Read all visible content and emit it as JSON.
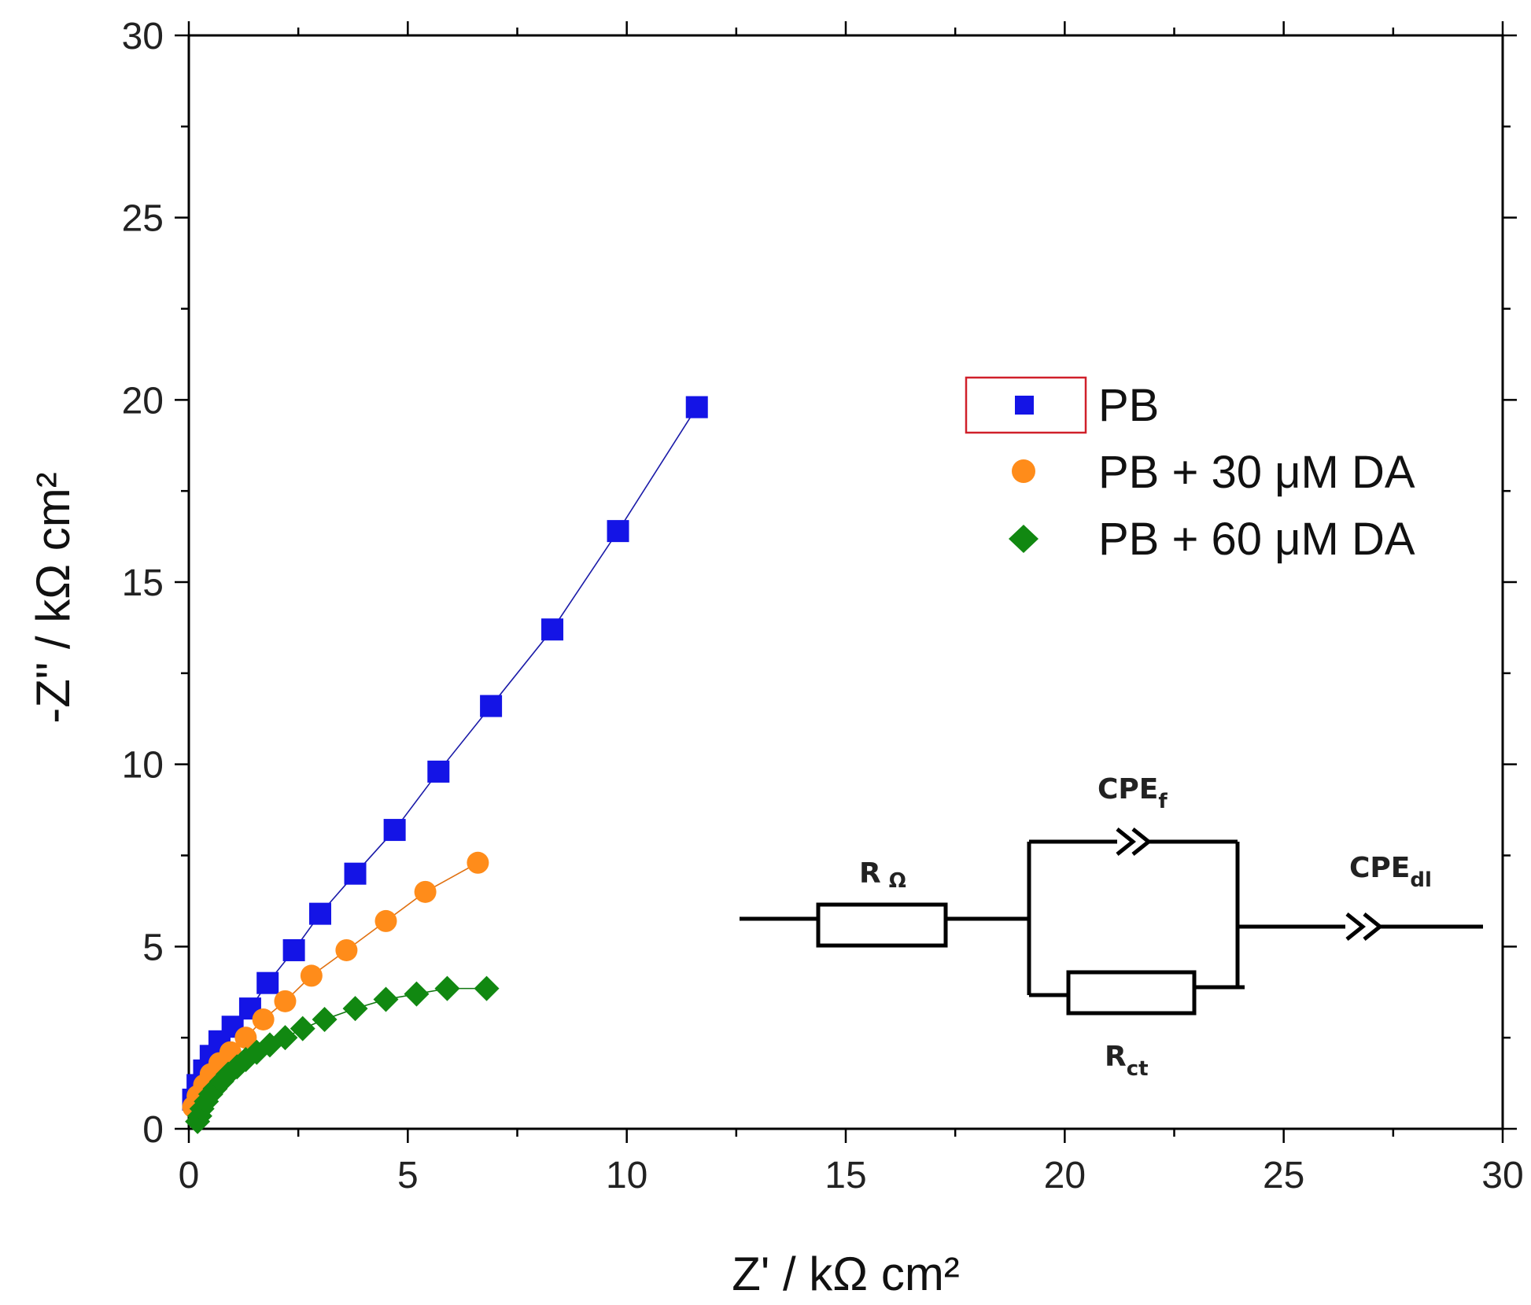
{
  "chart_data": {
    "type": "scatter",
    "xlabel": "Z' / kΩ cm²",
    "ylabel": "-Z\" / kΩ cm²",
    "xlim": [
      0,
      30
    ],
    "ylim": [
      0,
      30
    ],
    "xticks": [
      "0",
      "5",
      "10",
      "15",
      "20",
      "25",
      "30"
    ],
    "yticks": [
      "0",
      "5",
      "10",
      "15",
      "20",
      "25",
      "30"
    ],
    "legend_position": "upper-right",
    "series": [
      {
        "name": "PB",
        "marker": "square",
        "color": "#1414e6",
        "x": [
          0.1,
          0.2,
          0.35,
          0.5,
          0.7,
          1.0,
          1.4,
          1.8,
          2.4,
          3.0,
          3.8,
          4.7,
          5.7,
          6.9,
          8.3,
          9.8,
          11.6
        ],
        "y": [
          0.8,
          1.2,
          1.6,
          2.0,
          2.4,
          2.8,
          3.3,
          4.0,
          4.9,
          5.9,
          7.0,
          8.2,
          9.8,
          11.6,
          13.7,
          16.4,
          19.8
        ]
      },
      {
        "name": "PB + 30 μM DA",
        "marker": "circle",
        "color": "#ff8c1a",
        "x": [
          0.1,
          0.2,
          0.35,
          0.5,
          0.7,
          0.95,
          1.3,
          1.7,
          2.2,
          2.8,
          3.6,
          4.5,
          5.4,
          6.6
        ],
        "y": [
          0.6,
          0.9,
          1.2,
          1.5,
          1.8,
          2.1,
          2.5,
          3.0,
          3.5,
          4.2,
          4.9,
          5.7,
          6.5,
          7.3
        ]
      },
      {
        "name": "PB + 60 μM DA",
        "marker": "diamond",
        "color": "#118811",
        "x": [
          0.2,
          0.25,
          0.3,
          0.4,
          0.5,
          0.6,
          0.75,
          0.9,
          1.1,
          1.3,
          1.55,
          1.85,
          2.2,
          2.6,
          3.1,
          3.8,
          4.5,
          5.2,
          5.9,
          6.8
        ],
        "y": [
          0.2,
          0.35,
          0.55,
          0.75,
          0.95,
          1.1,
          1.3,
          1.5,
          1.7,
          1.9,
          2.1,
          2.3,
          2.5,
          2.75,
          3.0,
          3.3,
          3.55,
          3.7,
          3.85,
          3.85
        ]
      }
    ]
  },
  "circuit": {
    "r_omega_base": "R",
    "r_omega_sub": "Ω",
    "cpe_f_base": "CPE",
    "cpe_f_sub": "f",
    "cpe_dl_base": "CPE",
    "cpe_dl_sub": "dl",
    "r_ct_base": "R",
    "r_ct_sub": "ct"
  }
}
